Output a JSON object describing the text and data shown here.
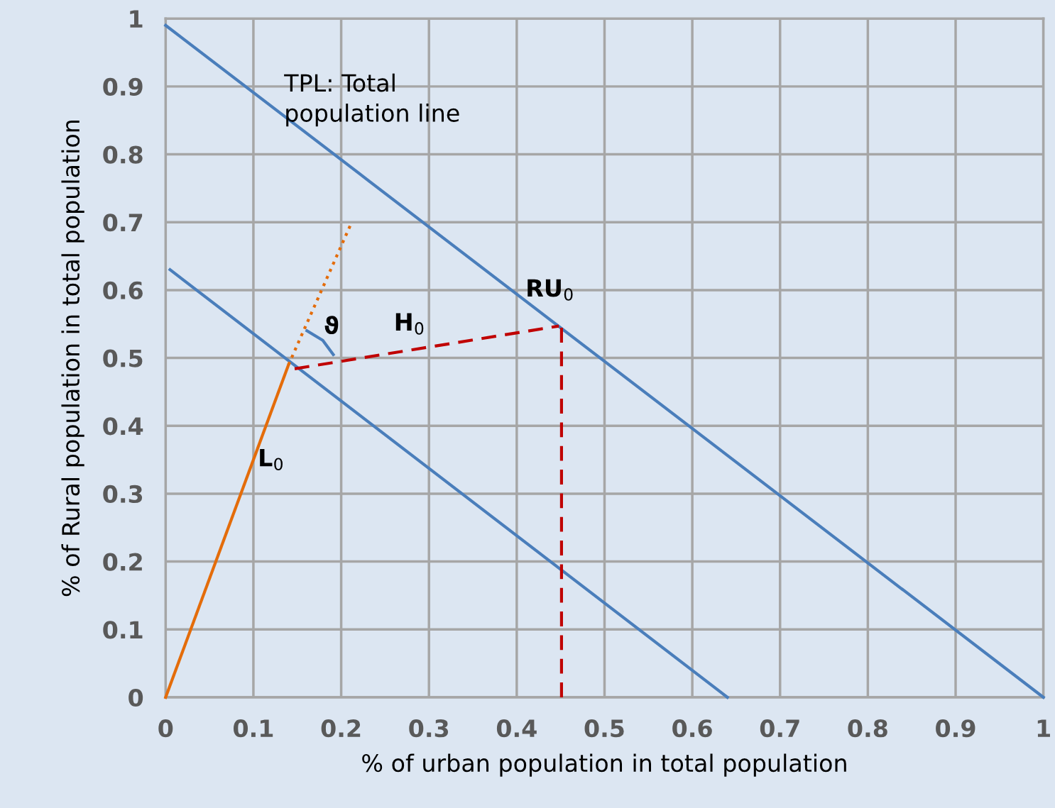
{
  "chart_data": {
    "type": "line",
    "xlabel": "% of urban population in total population",
    "ylabel": "% of Rural population in total population",
    "xlim": [
      0,
      1
    ],
    "ylim": [
      0,
      1
    ],
    "xticks": [
      0,
      0.1,
      0.2,
      0.3,
      0.4,
      0.5,
      0.6,
      0.7,
      0.8,
      0.9,
      1
    ],
    "yticks": [
      0,
      0.1,
      0.2,
      0.3,
      0.4,
      0.5,
      0.6,
      0.7,
      0.8,
      0.9,
      1
    ],
    "grid": true,
    "marker": "none",
    "series": [
      {
        "color": "#4a7ebb",
        "x": [
          0,
          1
        ],
        "values": [
          0.99,
          0
        ]
      },
      {
        "color": "#4a7ebb",
        "x": [
          0.005,
          0.64
        ],
        "values": [
          0.63,
          0
        ]
      },
      {
        "color": "#e46c0a",
        "x": [
          0,
          0.14
        ],
        "values": [
          0,
          0.49
        ]
      },
      {
        "color": "#e46c0a",
        "line_style": "dotted",
        "x": [
          0.14,
          0.212
        ],
        "values": [
          0.49,
          0.7
        ]
      },
      {
        "color": "#c00000",
        "line_style": "dashed",
        "x": [
          0.147,
          0.448
        ],
        "values": [
          0.484,
          0.547
        ]
      },
      {
        "color": "#c00000",
        "line_style": "dashed",
        "x": [
          0.451,
          0.451
        ],
        "values": [
          0,
          0.55
        ]
      },
      {
        "color": "#4a7ebb",
        "x": [
          0.161,
          0.179,
          0.191
        ],
        "values": [
          0.54,
          0.526,
          0.505
        ]
      }
    ],
    "annotations": [
      "TPL: Total\npopulation line",
      "RU$_{0}$",
      "H$_{0}$",
      "L$_{0}$",
      "ϑ"
    ]
  }
}
